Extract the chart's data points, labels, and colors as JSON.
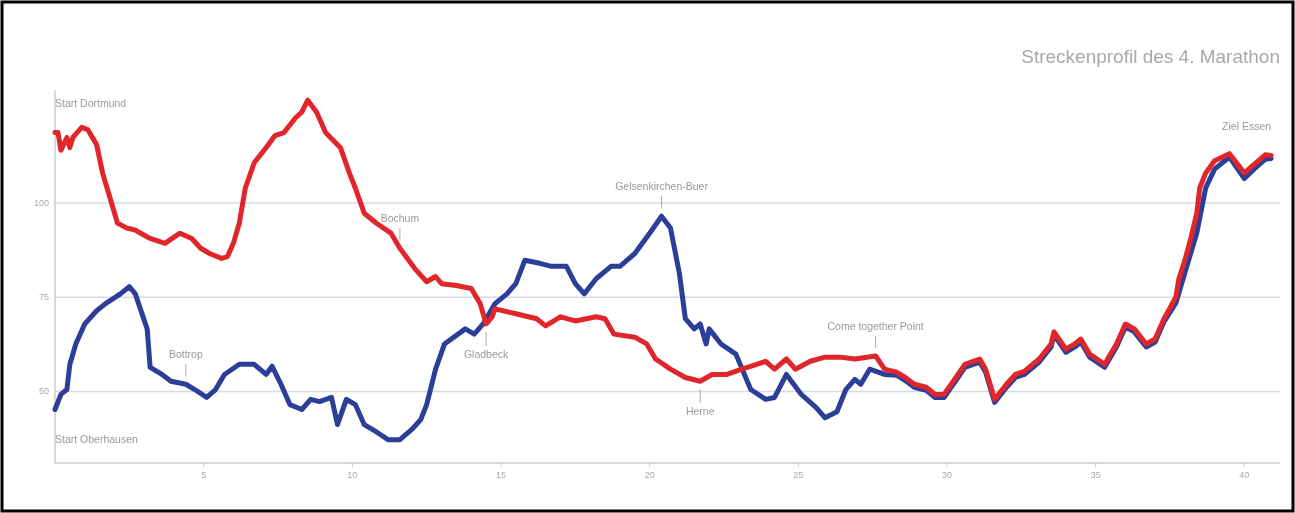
{
  "chart_data": {
    "type": "line",
    "title": "Streckenprofil des 4. Marathon",
    "xlim": [
      0,
      41.2
    ],
    "xticks": [
      5,
      10,
      15,
      20,
      25,
      30,
      35,
      40
    ],
    "ylim": [
      31,
      130
    ],
    "yticks": [
      50,
      75,
      100
    ],
    "grid": "y",
    "line_style": "solid",
    "marker": "none",
    "series": [
      {
        "color": "#2b3f99",
        "x": [
          0,
          0.2,
          0.4,
          0.5,
          0.7,
          1.0,
          1.4,
          1.7,
          2.2,
          2.5,
          2.7,
          3.1,
          3.2,
          3.6,
          3.9,
          4.4,
          4.7,
          5.1,
          5.4,
          5.7,
          6.2,
          6.7,
          7.1,
          7.3,
          7.6,
          7.9,
          8.3,
          8.6,
          8.9,
          9.3,
          9.5,
          9.8,
          10.1,
          10.4,
          10.8,
          11.2,
          11.6,
          12.0,
          12.3,
          12.5,
          12.8,
          13.1,
          13.8,
          14.1,
          14.4,
          14.8,
          15.2,
          15.5,
          15.8,
          16.3,
          16.7,
          17.2,
          17.5,
          17.8,
          18.2,
          18.7,
          19.0,
          19.5,
          20.0,
          20.4,
          20.7,
          21.0,
          21.2,
          21.5,
          21.7,
          21.9,
          22.0,
          22.4,
          22.9,
          23.4,
          23.9,
          24.2,
          24.6,
          25.1,
          25.6,
          25.9,
          26.3,
          26.6,
          26.9,
          27.1,
          27.4,
          27.9,
          28.3,
          28.6,
          28.9,
          29.3,
          29.6,
          29.9,
          30.3,
          30.6,
          31.1,
          31.3,
          31.6,
          32.0,
          32.3,
          32.6,
          33.1,
          33.5,
          33.6,
          34.0,
          34.3,
          34.5,
          34.8,
          35.3,
          35.7,
          36.0,
          36.3,
          36.7,
          37.0,
          37.3,
          37.7,
          38.0,
          38.4,
          38.7,
          39.0,
          39.5,
          40.0,
          40.4,
          40.7,
          40.9
        ],
        "values": [
          45.2,
          49.2,
          50.5,
          57.2,
          62.6,
          67.9,
          71.4,
          73.3,
          75.9,
          77.8,
          75.9,
          66.6,
          56.4,
          54.5,
          52.7,
          51.9,
          50.5,
          48.4,
          50.5,
          54.5,
          57.2,
          57.2,
          54.5,
          56.7,
          51.9,
          46.5,
          45.2,
          47.9,
          47.3,
          48.4,
          41.2,
          47.9,
          46.5,
          41.2,
          39.3,
          37.2,
          37.2,
          39.9,
          42.5,
          46.5,
          55.9,
          62.6,
          66.6,
          65.2,
          67.9,
          73.3,
          75.9,
          78.6,
          84.8,
          84,
          83.2,
          83.2,
          78.6,
          75.9,
          79.9,
          83.2,
          83.2,
          86.6,
          92,
          96.5,
          93.4,
          81.3,
          69.3,
          66.6,
          67.9,
          62.6,
          66.6,
          62.6,
          59.9,
          50.5,
          47.9,
          48.4,
          54.5,
          49.2,
          45.7,
          43,
          44.6,
          50.5,
          53.2,
          51.9,
          55.9,
          54.5,
          54.3,
          52.9,
          51.1,
          50.3,
          48.4,
          48.4,
          52.9,
          56.4,
          57.8,
          55.1,
          47.1,
          51.1,
          53.7,
          54.5,
          57.8,
          61.8,
          65,
          60.4,
          61.8,
          63.1,
          59.1,
          56.4,
          61.8,
          67.1,
          65.8,
          61.8,
          63.1,
          68.5,
          73.5,
          81.5,
          92,
          104,
          109,
          112.2,
          106.5,
          109.5,
          111.6,
          111.8
        ]
      },
      {
        "color": "#e0262b",
        "x": [
          0,
          0.1,
          0.2,
          0.4,
          0.5,
          0.6,
          0.9,
          1.1,
          1.4,
          1.6,
          1.9,
          2.1,
          2.4,
          2.7,
          3.2,
          3.7,
          4.2,
          4.6,
          4.9,
          5.2,
          5.6,
          5.8,
          6.0,
          6.2,
          6.4,
          6.7,
          7.1,
          7.4,
          7.7,
          8.1,
          8.3,
          8.5,
          8.8,
          9.1,
          9.6,
          9.9,
          10.1,
          10.4,
          10.8,
          11.3,
          11.6,
          12.1,
          12.5,
          12.8,
          13.0,
          13.5,
          14.0,
          14.3,
          14.5,
          14.7,
          14.8,
          15.5,
          16.2,
          16.5,
          17.0,
          17.5,
          18.2,
          18.5,
          18.8,
          19.5,
          19.9,
          20.2,
          20.7,
          21.2,
          21.7,
          22.1,
          22.6,
          23.1,
          23.6,
          23.9,
          24.2,
          24.6,
          24.9,
          25.4,
          25.9,
          26.4,
          26.9,
          27.6,
          27.9,
          28.3,
          28.6,
          28.9,
          29.3,
          29.6,
          29.9,
          30.3,
          30.6,
          31.1,
          31.3,
          31.6,
          32.0,
          32.3,
          32.6,
          33.1,
          33.5,
          33.6,
          34.0,
          34.3,
          34.5,
          34.8,
          35.3,
          35.7,
          36.0,
          36.3,
          36.7,
          37.0,
          37.3,
          37.7,
          37.8,
          38.0,
          38.2,
          38.4,
          38.5,
          38.7,
          39.0,
          39.5,
          40.0,
          40.4,
          40.7,
          40.9
        ],
        "values": [
          118.7,
          118.7,
          114,
          117.4,
          114.7,
          117.4,
          120.1,
          119.5,
          115.5,
          108,
          100,
          94.7,
          93.4,
          92.8,
          90.6,
          89.3,
          92,
          90.6,
          88,
          86.6,
          85.3,
          85.8,
          89.3,
          94.7,
          104,
          110.7,
          114.7,
          117.9,
          118.7,
          122.7,
          124.1,
          127.3,
          124.1,
          118.7,
          114.7,
          108,
          104,
          97.3,
          94.7,
          92,
          88,
          82.6,
          79.1,
          80.5,
          78.6,
          78.1,
          77.3,
          73.3,
          67.9,
          69.8,
          71.9,
          70.6,
          69.3,
          67.4,
          69.8,
          68.7,
          69.8,
          69.3,
          65.2,
          64.4,
          62.6,
          58.6,
          55.9,
          53.7,
          52.7,
          54.5,
          54.5,
          55.9,
          57.2,
          58,
          55.9,
          58.6,
          55.9,
          58,
          59.1,
          59.1,
          58.6,
          59.4,
          55.9,
          55.1,
          53.7,
          51.9,
          51.1,
          49.2,
          49.2,
          53.7,
          57.2,
          58.6,
          55.9,
          47.9,
          51.9,
          54.5,
          55.3,
          58.6,
          62.6,
          65.8,
          61.2,
          62.6,
          63.9,
          59.9,
          57.2,
          62.6,
          67.9,
          66.6,
          62.6,
          63.9,
          69.3,
          75.1,
          79.9,
          84.8,
          90.6,
          97.3,
          104,
          108,
          111.2,
          113.1,
          108,
          110.7,
          112.8,
          112.6
        ]
      }
    ],
    "annotations": [
      {
        "text": "Start Dortmund",
        "x": 0,
        "y": 118.7
      },
      {
        "text": "Start Oberhausen",
        "x": 0,
        "y": 45.2
      },
      {
        "text": "Bottrop",
        "x": 4.4,
        "y": 51.9
      },
      {
        "text": "Bochum",
        "x": 11.6,
        "y": 88
      },
      {
        "text": "Gladbeck",
        "x": 14.5,
        "y": 67.9
      },
      {
        "text": "Gelsenkirchen-Buer",
        "x": 20.4,
        "y": 96.5
      },
      {
        "text": "Herne",
        "x": 21.7,
        "y": 52.7
      },
      {
        "text": "Come together Point",
        "x": 27.6,
        "y": 59.4
      },
      {
        "text": "Ziel Essen",
        "x": 40.9,
        "y": 112.6
      }
    ]
  }
}
